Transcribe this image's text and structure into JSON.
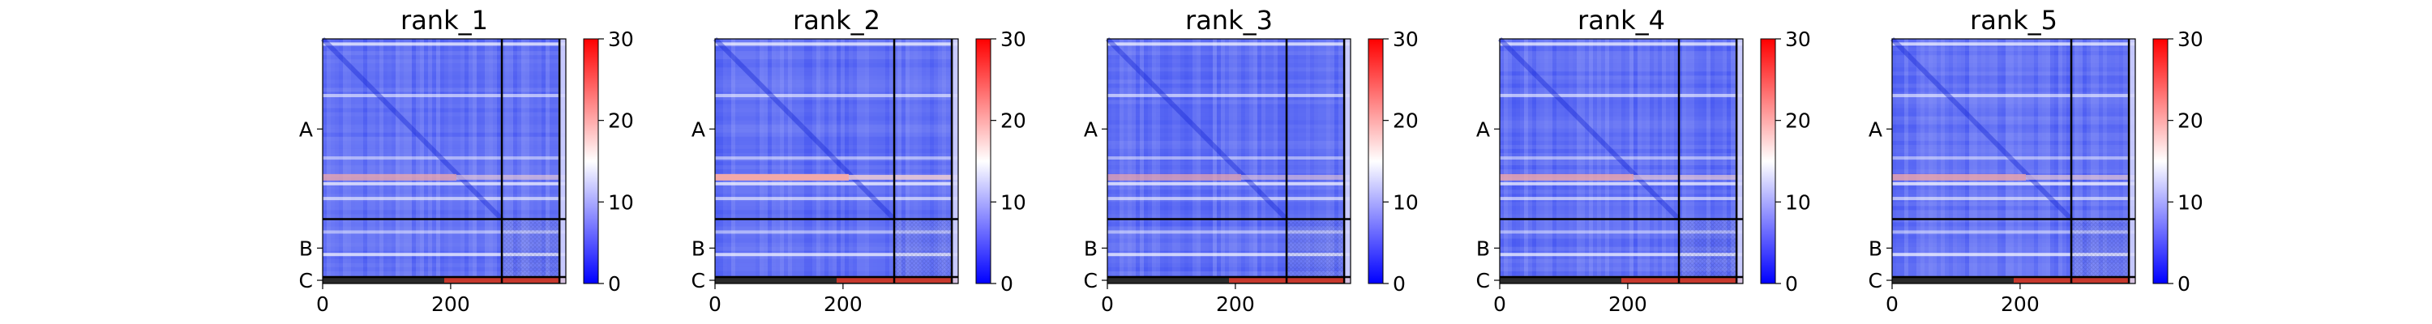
{
  "chart_data": [
    {
      "type": "heatmap",
      "title": "rank_1",
      "x_ticks": [
        0,
        200
      ],
      "y_labels": [
        "A",
        "B",
        "C"
      ],
      "chain_boundaries": [
        280,
        370
      ],
      "total_length": 380,
      "hot_rows": [
        {
          "pos": 215,
          "strength": 0.75
        }
      ],
      "colorbar": {
        "min": 0,
        "max": 30,
        "ticks": [
          0,
          10,
          20,
          30
        ],
        "colormap": "bwr"
      }
    },
    {
      "type": "heatmap",
      "title": "rank_2",
      "x_ticks": [
        0,
        200
      ],
      "y_labels": [
        "A",
        "B",
        "C"
      ],
      "chain_boundaries": [
        280,
        370
      ],
      "total_length": 380,
      "hot_rows": [
        {
          "pos": 215,
          "strength": 1.0
        }
      ],
      "colorbar": {
        "min": 0,
        "max": 30,
        "ticks": [
          0,
          10,
          20,
          30
        ],
        "colormap": "bwr"
      }
    },
    {
      "type": "heatmap",
      "title": "rank_3",
      "x_ticks": [
        0,
        200
      ],
      "y_labels": [
        "A",
        "B",
        "C"
      ],
      "chain_boundaries": [
        280,
        370
      ],
      "total_length": 380,
      "hot_rows": [
        {
          "pos": 215,
          "strength": 0.7
        }
      ],
      "colorbar": {
        "min": 0,
        "max": 30,
        "ticks": [
          0,
          10,
          20,
          30
        ],
        "colormap": "bwr"
      }
    },
    {
      "type": "heatmap",
      "title": "rank_4",
      "x_ticks": [
        0,
        200
      ],
      "y_labels": [
        "A",
        "B",
        "C"
      ],
      "chain_boundaries": [
        280,
        370
      ],
      "total_length": 380,
      "hot_rows": [
        {
          "pos": 215,
          "strength": 0.8
        }
      ],
      "colorbar": {
        "min": 0,
        "max": 30,
        "ticks": [
          0,
          10,
          20,
          30
        ],
        "colormap": "bwr"
      }
    },
    {
      "type": "heatmap",
      "title": "rank_5",
      "x_ticks": [
        0,
        200
      ],
      "y_labels": [
        "A",
        "B",
        "C"
      ],
      "chain_boundaries": [
        280,
        370
      ],
      "total_length": 380,
      "hot_rows": [
        {
          "pos": 215,
          "strength": 0.8
        }
      ],
      "colorbar": {
        "min": 0,
        "max": 30,
        "ticks": [
          0,
          10,
          20,
          30
        ],
        "colormap": "bwr"
      }
    }
  ],
  "colors": {
    "low": "#0000ff",
    "mid": "#ffffff",
    "high": "#ff0000",
    "axis": "#000000"
  }
}
